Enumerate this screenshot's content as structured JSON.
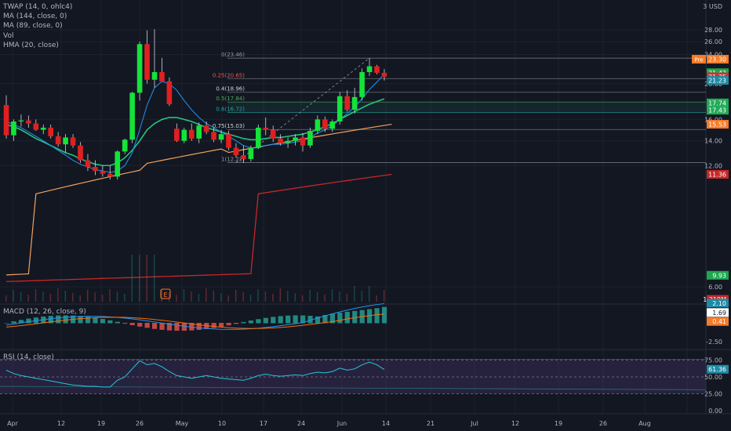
{
  "legend": {
    "main": [
      "TWAP (14, 0, ohlc4)",
      "MA (144, close, 0)",
      "MA (89, close, 0)",
      "Vol",
      "HMA (20, close)"
    ],
    "macd": "MACD (12, 26, close, 9)",
    "rsi": "RSI (14, close)"
  },
  "price_axis": {
    "top_label": "3 USD",
    "ticks": [
      "28.00",
      "26.00",
      "24.00",
      "20.00",
      "16.00",
      "14.00",
      "12.00",
      "6.00"
    ]
  },
  "price_tags": [
    {
      "text": "23.30",
      "prefix": "Pre",
      "color": "#f57c2b",
      "text_color": "#ffffff",
      "v": 23.3
    },
    {
      "text": "21.42",
      "color": "#1fa64e",
      "text_color": "#ffffff",
      "v": 21.42
    },
    {
      "text": "21.35",
      "color": "#d32f2f",
      "text_color": "#ffffff",
      "v": 20.87
    },
    {
      "text": "21.23",
      "color": "#1f8aa4",
      "text_color": "#ffffff",
      "v": 20.42
    },
    {
      "text": "17.74",
      "color": "#22ab58",
      "text_color": "#ffffff",
      "v": 17.74
    },
    {
      "text": "17.43",
      "color": "#22ab58",
      "text_color": "#ffffff",
      "v": 16.95
    },
    {
      "text": "15.53",
      "color": "#f57c2b",
      "text_color": "#ffffff",
      "v": 15.53
    },
    {
      "text": "11.36",
      "color": "#c62828",
      "text_color": "#ffffff",
      "v": 11.36
    },
    {
      "text": "9.93",
      "color": "#1fa64e",
      "text_color": "#ffffff",
      "v": 9.5
    }
  ],
  "vol_tag": {
    "text": "1.219M",
    "color": "#c62828"
  },
  "fib_levels": [
    {
      "label": "0(23.46)",
      "value": 23.46,
      "color": "#9598a1",
      "label_color": "#9598a1"
    },
    {
      "label": "0.25(20.65)",
      "value": 20.65,
      "color": "#9598a1",
      "label_color": "#ef5350"
    },
    {
      "label": "0.4(18.96)",
      "value": 18.96,
      "color": "#9598a1",
      "label_color": "#d1d4dc"
    },
    {
      "label": "0.5(17.84)",
      "value": 17.84,
      "color": "#4caf50",
      "label_color": "#4caf50"
    },
    {
      "label": "0.6(16.72)",
      "value": 16.72,
      "color": "#26a69a",
      "label_color": "#26a69a"
    },
    {
      "label": "0.75(15.03)",
      "value": 15.03,
      "color": "#9598a1",
      "label_color": "#d1d4dc"
    },
    {
      "label": "1(12.22)",
      "value": 12.22,
      "color": "#9598a1",
      "label_color": "#9598a1"
    }
  ],
  "earnings_marker": "E",
  "macd_axis": {
    "ticks": [
      "-2.50"
    ],
    "tags": [
      {
        "text": "2.10",
        "color": "#1f8aa4",
        "v": 2.1
      },
      {
        "text": "1.69",
        "color": "#ffffff",
        "text_color": "#131722",
        "v": 1.1
      },
      {
        "text": "0.41",
        "color": "#f57c2b",
        "v": 0.15
      }
    ]
  },
  "rsi_axis": {
    "ticks": [
      "75.00",
      "50.00",
      "25.00",
      "0.00"
    ],
    "tag": {
      "text": "61.36",
      "color": "#1f8aa4"
    }
  },
  "time_axis": [
    "Apr",
    "12",
    "19",
    "26",
    "May",
    "10",
    "17",
    "24",
    "Jun",
    "14",
    "21",
    "Jul",
    "12",
    "19",
    "26",
    "Aug"
  ],
  "chart_data": {
    "type": "candlestick",
    "note_series": "daily OHLC",
    "candles": [
      [
        17.5,
        18.6,
        14.2,
        14.5
      ],
      [
        14.5,
        16.0,
        14.0,
        15.8
      ],
      [
        15.8,
        16.5,
        15.3,
        15.9
      ],
      [
        15.9,
        16.4,
        15.2,
        15.6
      ],
      [
        15.6,
        16.0,
        14.9,
        15.0
      ],
      [
        15.0,
        15.5,
        14.6,
        15.2
      ],
      [
        15.2,
        15.5,
        14.2,
        14.4
      ],
      [
        14.4,
        14.8,
        13.5,
        13.7
      ],
      [
        13.7,
        14.6,
        13.0,
        14.3
      ],
      [
        14.3,
        14.6,
        13.4,
        13.6
      ],
      [
        13.6,
        13.9,
        12.2,
        12.4
      ],
      [
        12.4,
        12.9,
        11.6,
        11.9
      ],
      [
        11.9,
        12.4,
        11.3,
        11.6
      ],
      [
        11.6,
        12.0,
        11.2,
        11.4
      ],
      [
        11.4,
        12.0,
        11.0,
        11.2
      ],
      [
        11.2,
        13.2,
        11.0,
        13.1
      ],
      [
        13.1,
        14.2,
        12.9,
        14.1
      ],
      [
        14.1,
        19.0,
        13.8,
        18.9
      ],
      [
        18.9,
        26.0,
        18.0,
        25.6
      ],
      [
        25.6,
        27.9,
        20.0,
        20.5
      ],
      [
        20.5,
        28.1,
        19.5,
        21.5
      ],
      [
        21.5,
        23.5,
        20.5,
        20.3
      ],
      [
        20.3,
        20.8,
        17.4,
        17.6
      ],
      [
        15.1,
        15.6,
        13.9,
        14.0
      ],
      [
        14.0,
        15.2,
        13.8,
        15.0
      ],
      [
        15.0,
        15.6,
        14.0,
        14.2
      ],
      [
        14.2,
        15.7,
        13.8,
        15.4
      ],
      [
        15.4,
        15.8,
        14.6,
        14.8
      ],
      [
        14.8,
        15.2,
        13.9,
        14.1
      ],
      [
        14.1,
        15.0,
        13.8,
        14.6
      ],
      [
        14.6,
        14.9,
        13.2,
        13.4
      ],
      [
        13.4,
        13.8,
        12.6,
        12.8
      ],
      [
        12.8,
        13.6,
        12.2,
        12.5
      ],
      [
        12.5,
        13.6,
        12.3,
        13.4
      ],
      [
        13.4,
        15.5,
        13.3,
        15.2
      ],
      [
        15.2,
        16.2,
        14.5,
        15.0
      ],
      [
        15.0,
        15.4,
        13.9,
        14.2
      ],
      [
        14.2,
        14.6,
        13.6,
        13.8
      ],
      [
        13.8,
        14.3,
        13.4,
        14.0
      ],
      [
        14.0,
        14.6,
        13.6,
        14.3
      ],
      [
        14.3,
        14.7,
        13.1,
        13.6
      ],
      [
        13.6,
        15.2,
        13.4,
        14.9
      ],
      [
        14.9,
        16.4,
        14.6,
        16.0
      ],
      [
        16.0,
        16.3,
        14.8,
        15.1
      ],
      [
        15.1,
        16.0,
        14.8,
        15.8
      ],
      [
        15.8,
        19.0,
        15.5,
        18.5
      ],
      [
        18.5,
        19.2,
        16.8,
        17.0
      ],
      [
        17.0,
        19.5,
        16.6,
        18.4
      ],
      [
        18.4,
        22.0,
        18.0,
        21.5
      ],
      [
        21.5,
        23.5,
        21.0,
        22.3
      ],
      [
        22.3,
        22.5,
        21.2,
        21.4
      ],
      [
        21.4,
        21.9,
        20.4,
        20.9
      ]
    ],
    "time_labels": [
      "Apr",
      "12",
      "19",
      "26",
      "May",
      "10",
      "17",
      "24",
      "Jun",
      "14",
      "21",
      "Jul",
      "12",
      "19",
      "26",
      "Aug"
    ],
    "ylim": [
      5.5,
      29
    ],
    "fib_retracement": [
      23.46,
      20.65,
      18.96,
      17.84,
      16.72,
      15.03,
      12.22
    ],
    "ma144_last": 11.36,
    "ma89_last": 15.53,
    "twap_last": 21.23,
    "volume_last": "1.219M",
    "macd_last": {
      "macd": 2.1,
      "histogram": 1.69,
      "signal": 0.41
    },
    "rsi_last": 61.36,
    "rsi_levels": [
      75,
      50,
      25
    ]
  }
}
